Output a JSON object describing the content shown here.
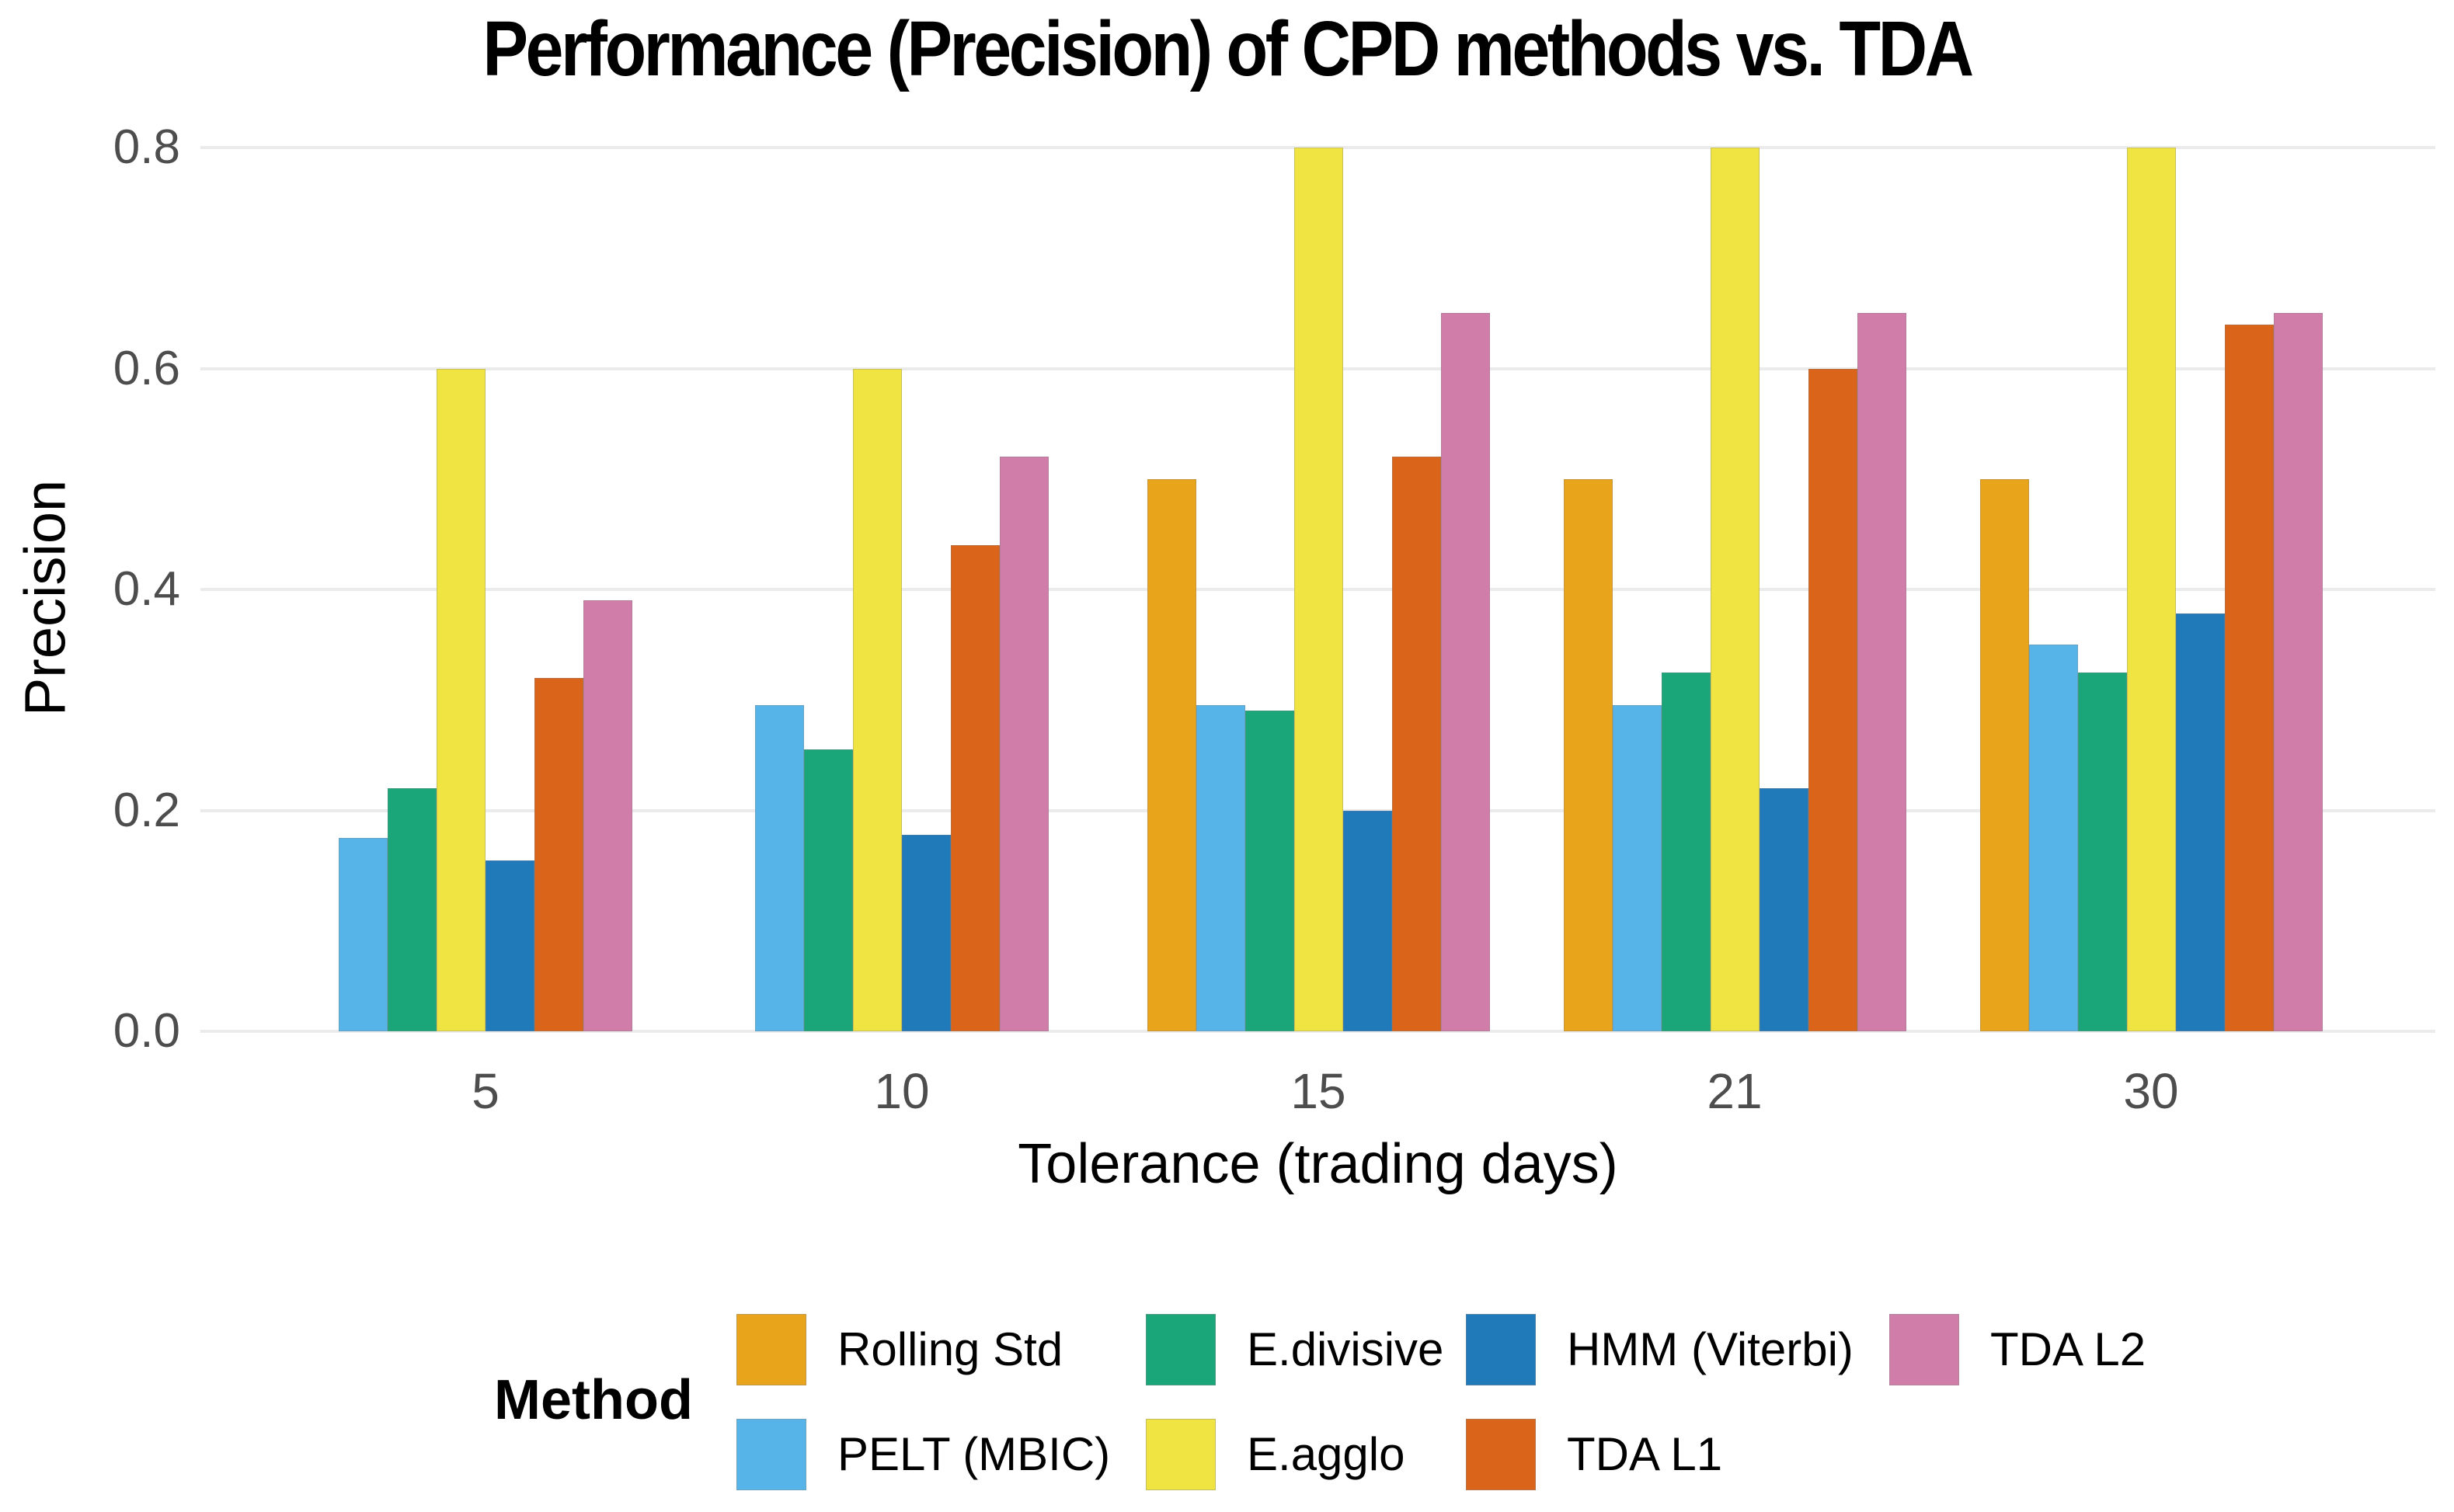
{
  "title": "Performance (Precision) of CPD methods vs. TDA",
  "axes": {
    "y_label": "Precision",
    "x_label": "Tolerance (trading days)",
    "y_ticks": [
      0.0,
      0.2,
      0.4,
      0.6,
      0.8
    ],
    "x_ticks": [
      "5",
      "10",
      "15",
      "21",
      "30"
    ]
  },
  "legend": {
    "title": "Method",
    "rows": 2,
    "position": "bottom"
  },
  "colors": {
    "background": "#FFFFFF",
    "gridline": "#EBEBEB",
    "tick_label": "#4D4D4D",
    "axis_title": "#000000"
  },
  "chart_data": {
    "type": "bar",
    "title": "Performance (Precision) of CPD methods vs. TDA",
    "xlabel": "Tolerance (trading days)",
    "ylabel": "Precision",
    "ylim": [
      0,
      0.8
    ],
    "grid": "horizontal-major",
    "legend_position": "bottom",
    "legend_title": "Method",
    "categories": [
      "5",
      "10",
      "15",
      "21",
      "30"
    ],
    "series": [
      {
        "name": "Rolling Std",
        "color": "#E8A41B",
        "values": [
          null,
          null,
          0.5,
          0.5,
          0.5
        ]
      },
      {
        "name": "PELT (MBIC)",
        "color": "#56B4E9",
        "values": [
          0.175,
          0.295,
          0.295,
          0.295,
          0.35
        ]
      },
      {
        "name": "E.divisive",
        "color": "#1AA678",
        "values": [
          0.22,
          0.255,
          0.29,
          0.325,
          0.325
        ]
      },
      {
        "name": "E.agglo",
        "color": "#F0E442",
        "values": [
          0.6,
          0.6,
          0.8,
          0.8,
          0.8
        ]
      },
      {
        "name": "HMM (Viterbi)",
        "color": "#2079B8",
        "values": [
          0.155,
          0.178,
          0.2,
          0.22,
          0.378
        ]
      },
      {
        "name": "TDA L1",
        "color": "#D9641A",
        "values": [
          0.32,
          0.44,
          0.52,
          0.6,
          0.64
        ]
      },
      {
        "name": "TDA L2",
        "color": "#D07DA9",
        "values": [
          0.39,
          0.52,
          0.65,
          0.65,
          0.65
        ]
      }
    ]
  }
}
